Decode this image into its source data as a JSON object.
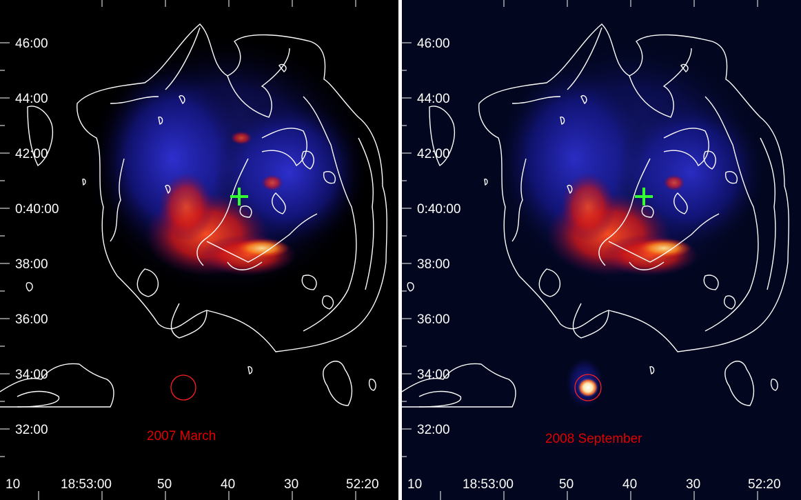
{
  "figure": {
    "colors": {
      "background_left": "#000000",
      "background_right": "#02061e",
      "contour": "#ffffff",
      "marker": "#33ff33",
      "circle": "#ff2020",
      "epoch_text": "#e00000"
    },
    "dec_ticks": [
      "46:00",
      "44:00",
      "42:00",
      "0:40:00",
      "38:00",
      "36:00",
      "34:00",
      "32:00"
    ],
    "ra_ticks": [
      "10",
      "18:53:00",
      "50",
      "40",
      "30",
      "52:20"
    ],
    "panels": [
      {
        "epoch": "2007 March",
        "source_visible": false
      },
      {
        "epoch": "2008 September",
        "source_visible": true
      }
    ],
    "markers": [
      "green-cross",
      "red-circle"
    ]
  }
}
